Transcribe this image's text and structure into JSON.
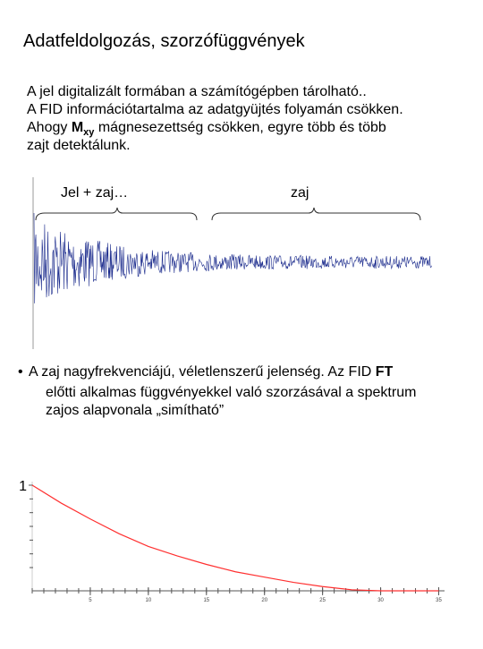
{
  "header": {
    "title": "Adatfeldolgozás, szorzófüggvények"
  },
  "intro": {
    "lines": [
      "A jel digitalizált formában a számítógépben tárolható..",
      "A FID információtartalma az adatgyüjtés folyamán csökken."
    ],
    "line3": {
      "before": "Ahogy ",
      "bold": "M",
      "sub": "xy",
      "after": " mágnesezettség csökken, egyre több és több"
    },
    "line4": "zajt detektálunk."
  },
  "figure": {
    "labels": [
      "Jel + zaj…",
      "zaj"
    ]
  },
  "bullet": {
    "marker": "•",
    "line1": {
      "text": "A zaj nagyfrekvenciájú, véletlenszerű jelenség. Az FID ",
      "bold": "FT"
    },
    "lines": [
      "előtti  alkalmas függvényekkel való szorzásával a spektrum",
      "zajos alapvonala „simítható”"
    ]
  },
  "chart_data": {
    "type": "line",
    "x": [
      0,
      2.5,
      5,
      7.5,
      10,
      12.5,
      15,
      17.5,
      20,
      22.5,
      25,
      27.5,
      30,
      35
    ],
    "series": [
      {
        "color": "#ff3030",
        "values": [
          1,
          0.83,
          0.68,
          0.54,
          0.42,
          0.33,
          0.25,
          0.18,
          0.13,
          0.08,
          0.04,
          0.01,
          0,
          0
        ]
      }
    ],
    "xlim": [
      0,
      35.5
    ],
    "ylim": [
      0,
      1
    ],
    "xticks": [
      5,
      10,
      15,
      20,
      25,
      30,
      35
    ],
    "yticks": [
      1
    ]
  }
}
